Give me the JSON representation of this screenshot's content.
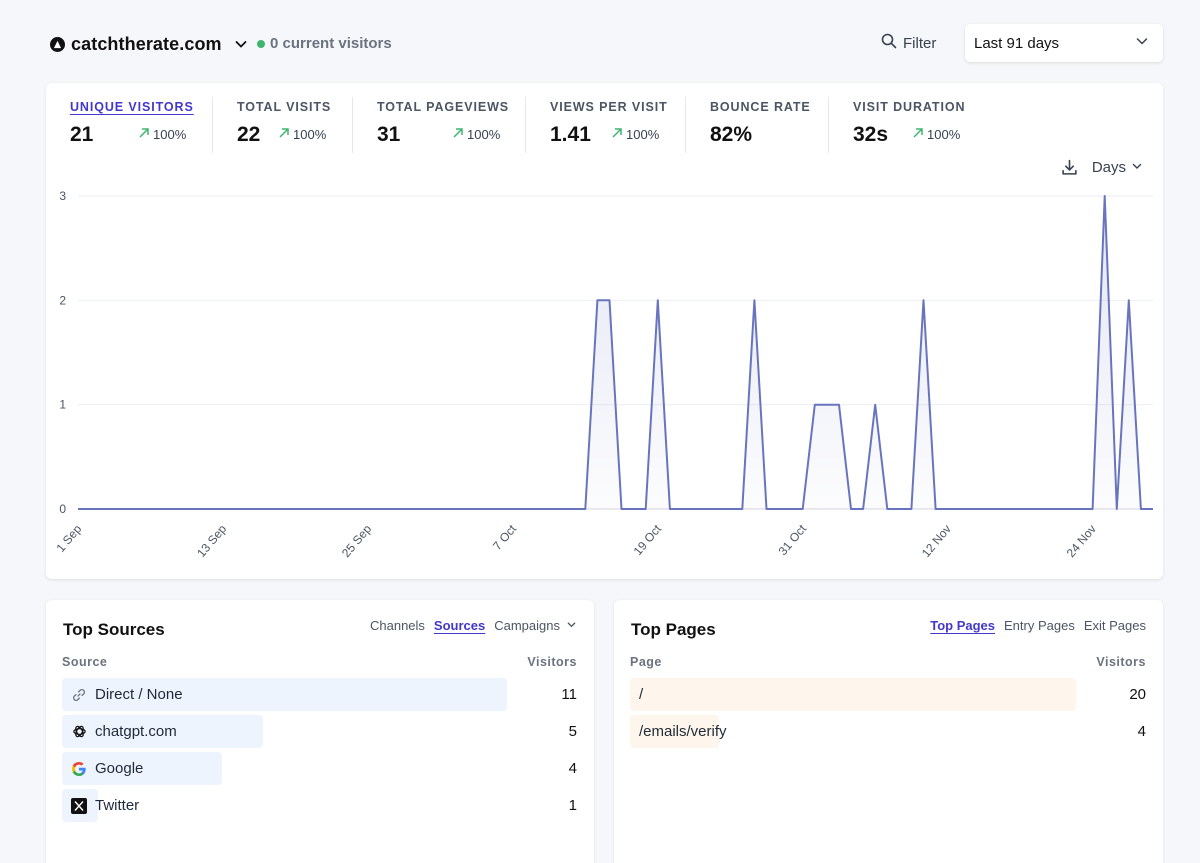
{
  "header": {
    "site_name": "catchtherate.com",
    "live_text": "0 current visitors",
    "filter_label": "Filter",
    "period_label": "Last 91 days"
  },
  "stats": [
    {
      "label": "UNIQUE VISITORS",
      "value": "21",
      "change": "100%",
      "active": true
    },
    {
      "label": "TOTAL VISITS",
      "value": "22",
      "change": "100%"
    },
    {
      "label": "TOTAL PAGEVIEWS",
      "value": "31",
      "change": "100%"
    },
    {
      "label": "VIEWS PER VISIT",
      "value": "1.41",
      "change": "100%"
    },
    {
      "label": "BOUNCE RATE",
      "value": "82%"
    },
    {
      "label": "VISIT DURATION",
      "value": "32s",
      "change": "100%"
    }
  ],
  "interval_label": "Days",
  "colors": {
    "accent": "#4338ca",
    "line": "#6875be",
    "live": "#3fb56f",
    "trend": "#3fb56f"
  },
  "chart_data": {
    "type": "area",
    "title": "",
    "xlabel": "",
    "ylabel": "",
    "ylim": [
      0,
      3
    ],
    "y_ticks": [
      0,
      1,
      2,
      3
    ],
    "x_ticks": [
      {
        "label": "1 Sep",
        "index": 0
      },
      {
        "label": "13 Sep",
        "index": 12
      },
      {
        "label": "25 Sep",
        "index": 24
      },
      {
        "label": "7 Oct",
        "index": 36
      },
      {
        "label": "19 Oct",
        "index": 48
      },
      {
        "label": "31 Oct",
        "index": 60
      },
      {
        "label": "12 Nov",
        "index": 72
      },
      {
        "label": "24 Nov",
        "index": 84
      }
    ],
    "series": [
      {
        "name": "Unique visitors",
        "values": [
          0,
          0,
          0,
          0,
          0,
          0,
          0,
          0,
          0,
          0,
          0,
          0,
          0,
          0,
          0,
          0,
          0,
          0,
          0,
          0,
          0,
          0,
          0,
          0,
          0,
          0,
          0,
          0,
          0,
          0,
          0,
          0,
          0,
          0,
          0,
          0,
          0,
          0,
          0,
          0,
          0,
          0,
          0,
          2,
          2,
          0,
          0,
          0,
          2,
          0,
          0,
          0,
          0,
          0,
          0,
          0,
          2,
          0,
          0,
          0,
          0,
          1,
          1,
          1,
          0,
          0,
          1,
          0,
          0,
          0,
          2,
          0,
          0,
          0,
          0,
          0,
          0,
          0,
          0,
          0,
          0,
          0,
          0,
          0,
          0,
          3,
          0,
          2,
          0,
          0
        ]
      }
    ]
  },
  "sources": {
    "title": "Top Sources",
    "tabs": [
      "Channels",
      "Sources",
      "Campaigns"
    ],
    "active_tab": "Sources",
    "col_label": "Source",
    "col_value": "Visitors",
    "rows": [
      {
        "label": "Direct / None",
        "value": "11",
        "icon": "link-icon",
        "fraction": 0.864
      },
      {
        "label": "chatgpt.com",
        "value": "5",
        "icon": "openai-icon",
        "fraction": 0.39
      },
      {
        "label": "Google",
        "value": "4",
        "icon": "google-icon",
        "fraction": 0.31
      },
      {
        "label": "Twitter",
        "value": "1",
        "icon": "x-twitter-icon",
        "fraction": 0.07
      }
    ]
  },
  "pages": {
    "title": "Top Pages",
    "tabs": [
      "Top Pages",
      "Entry Pages",
      "Exit Pages"
    ],
    "active_tab": "Top Pages",
    "col_label": "Page",
    "col_value": "Visitors",
    "rows": [
      {
        "label": "/",
        "value": "20",
        "fraction": 0.864
      },
      {
        "label": "/emails/verify",
        "value": "4",
        "fraction": 0.173
      }
    ]
  }
}
